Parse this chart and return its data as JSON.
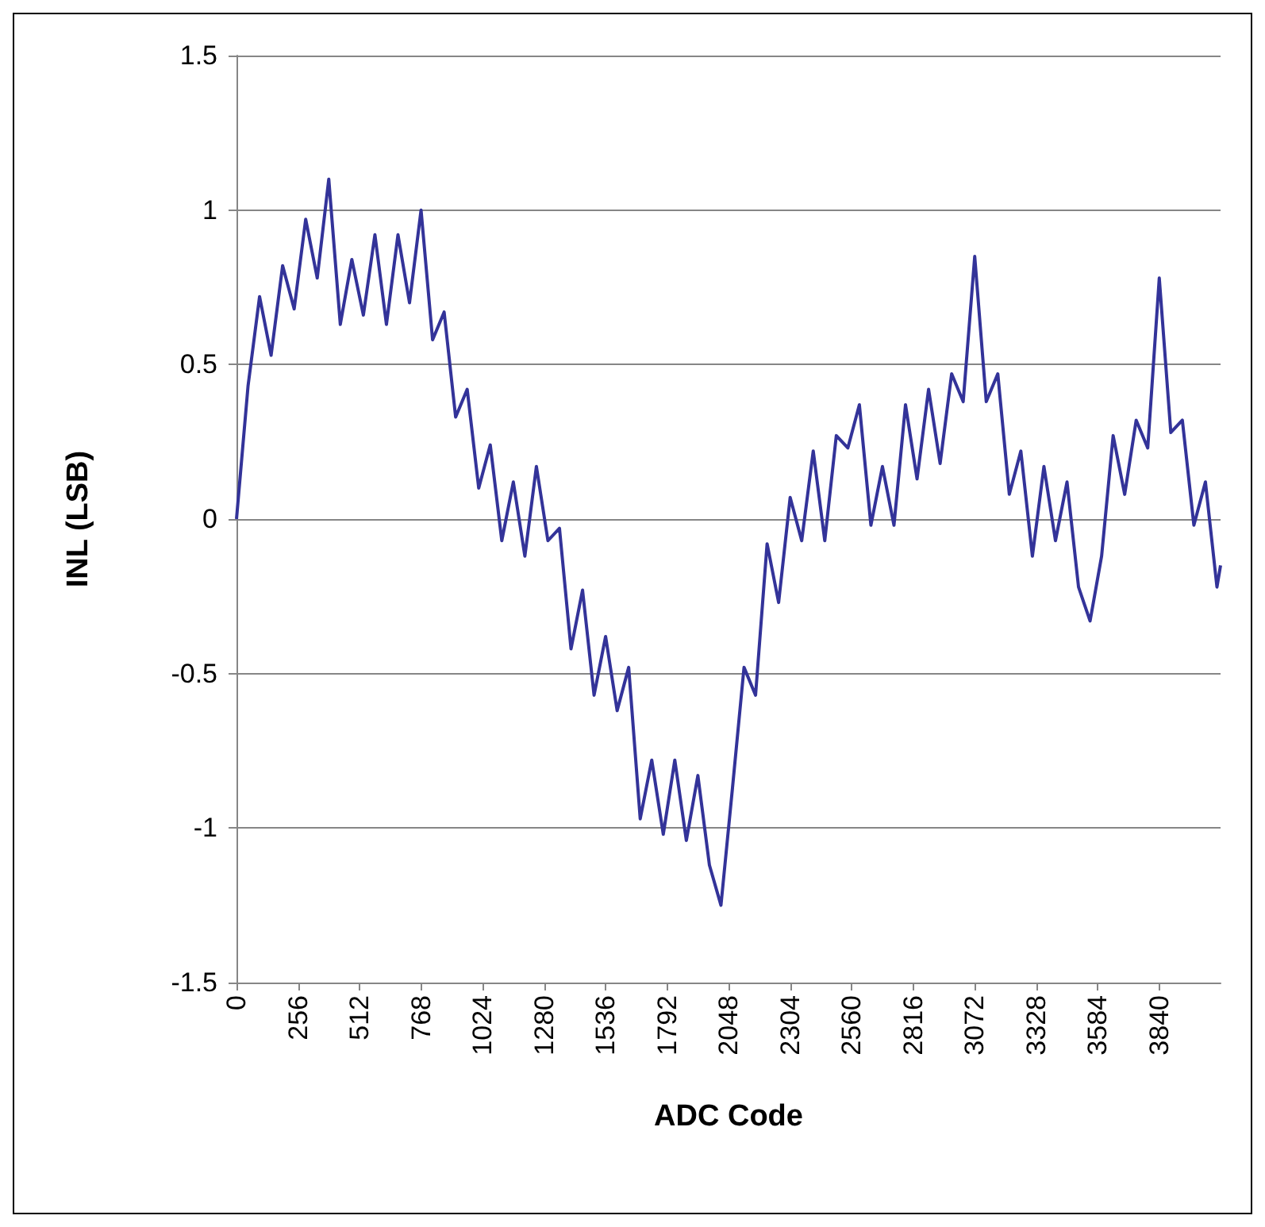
{
  "chart_data": {
    "type": "line",
    "xlabel": "ADC Code",
    "ylabel": "INL (LSB)",
    "x": [
      0,
      48,
      96,
      144,
      192,
      240,
      288,
      336,
      384,
      432,
      480,
      528,
      576,
      624,
      672,
      720,
      768,
      816,
      864,
      912,
      960,
      1008,
      1056,
      1104,
      1152,
      1200,
      1248,
      1296,
      1344,
      1392,
      1440,
      1488,
      1536,
      1584,
      1632,
      1680,
      1728,
      1776,
      1824,
      1872,
      1920,
      1968,
      2016,
      2064,
      2112,
      2160,
      2208,
      2256,
      2304,
      2352,
      2400,
      2448,
      2496,
      2544,
      2592,
      2640,
      2688,
      2736,
      2784,
      2832,
      2880,
      2928,
      2976,
      3024,
      3072,
      3120,
      3168,
      3216,
      3264,
      3312,
      3360,
      3408,
      3456,
      3504,
      3552,
      3600,
      3648,
      3696,
      3744,
      3792,
      3840,
      3888,
      3936,
      3984,
      4032,
      4080,
      4095
    ],
    "series": [
      {
        "color": "#333399",
        "values": [
          0,
          0.43,
          0.72,
          0.53,
          0.82,
          0.68,
          0.97,
          0.78,
          1.1,
          0.63,
          0.84,
          0.66,
          0.92,
          0.63,
          0.92,
          0.7,
          1.0,
          0.58,
          0.67,
          0.33,
          0.42,
          0.1,
          0.24,
          -0.07,
          0.12,
          -0.12,
          0.17,
          -0.07,
          -0.03,
          -0.42,
          -0.23,
          -0.57,
          -0.38,
          -0.62,
          -0.48,
          -0.97,
          -0.78,
          -1.02,
          -0.78,
          -1.04,
          -0.83,
          -1.12,
          -1.25,
          -0.87,
          -0.48,
          -0.57,
          -0.08,
          -0.27,
          0.07,
          -0.07,
          0.22,
          -0.07,
          0.27,
          0.23,
          0.37,
          -0.02,
          0.17,
          -0.02,
          0.37,
          0.13,
          0.42,
          0.18,
          0.47,
          0.38,
          0.85,
          0.38,
          0.47,
          0.08,
          0.22,
          -0.12,
          0.17,
          -0.07,
          0.12,
          -0.22,
          -0.33,
          -0.12,
          0.27,
          0.08,
          0.32,
          0.23,
          0.78,
          0.28,
          0.32,
          -0.02,
          0.12,
          -0.22,
          -0.15
        ]
      }
    ],
    "xlim": [
      0,
      4095
    ],
    "xticks": [
      0,
      256,
      512,
      768,
      1024,
      1280,
      1536,
      1792,
      2048,
      2304,
      2560,
      2816,
      3072,
      3328,
      3584,
      3840
    ],
    "ylim": [
      -1.5,
      1.5
    ],
    "yticks": [
      -1.5,
      -1,
      -0.5,
      0,
      0.5,
      1,
      1.5
    ],
    "grid": "y",
    "marker": "none",
    "line_style": "solid"
  }
}
